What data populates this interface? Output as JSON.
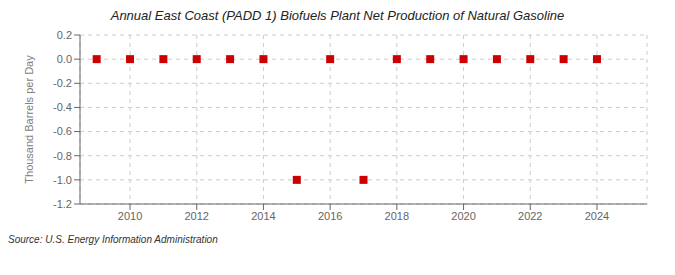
{
  "chart_data": {
    "type": "scatter",
    "title": "Annual East Coast (PADD 1) Biofuels Plant Net Production of Natural Gasoline",
    "ylabel": "Thousand Barrels per Day",
    "source": "Source: U.S. Energy Information Administration",
    "x": [
      2009,
      2010,
      2011,
      2012,
      2013,
      2014,
      2015,
      2016,
      2017,
      2018,
      2019,
      2020,
      2021,
      2022,
      2023,
      2024
    ],
    "values": [
      0.0,
      0.0,
      0.0,
      0.0,
      0.0,
      0.0,
      -1.0,
      0.0,
      -1.0,
      0.0,
      0.0,
      0.0,
      0.0,
      0.0,
      0.0,
      0.0
    ],
    "color": "#cc0000",
    "marker": "square",
    "xlim": [
      2008.5,
      2025.5
    ],
    "ylim": [
      -1.2,
      0.2
    ],
    "xticks": [
      2010,
      2012,
      2014,
      2016,
      2018,
      2020,
      2022,
      2024
    ],
    "yticks": [
      0.2,
      {
        "value": 0,
        "label": "0.0"
      },
      -0.2,
      -0.4,
      -0.6,
      -0.8,
      {
        "value": -1,
        "label": "-1.0"
      },
      -1.2
    ],
    "grid": true
  }
}
